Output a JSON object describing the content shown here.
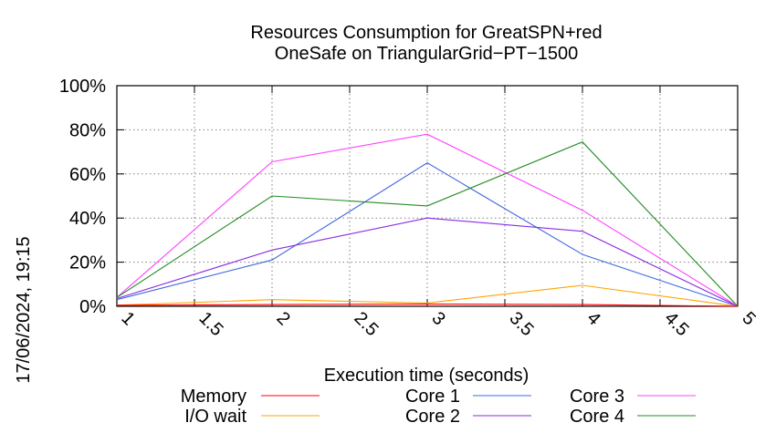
{
  "timestamp": "17/06/2024, 19:15",
  "chart_data": {
    "type": "line",
    "title": "Resources Consumption for GreatSPN+red",
    "subtitle": "OneSafe on TriangularGrid−PT−1500",
    "xlabel": "Execution time (seconds)",
    "ylabel": "",
    "xlim": [
      1,
      5
    ],
    "ylim": [
      0,
      100
    ],
    "x_ticks": [
      "1",
      "1.5",
      "2",
      "2.5",
      "3",
      "3.5",
      "4",
      "4.5",
      "5"
    ],
    "y_ticks": [
      "0%",
      "20%",
      "40%",
      "60%",
      "80%",
      "100%"
    ],
    "grid": true,
    "legend_position": "bottom",
    "x": [
      1,
      2,
      3,
      4,
      5
    ],
    "series": [
      {
        "name": "Memory",
        "color": "#ff0000",
        "values": [
          0.5,
          0.8,
          1.0,
          0.8,
          0
        ]
      },
      {
        "name": "I/O wait",
        "color": "#ffa500",
        "values": [
          0.5,
          3,
          1.5,
          9.5,
          0
        ]
      },
      {
        "name": "Core 1",
        "color": "#4169e1",
        "values": [
          3,
          21,
          65,
          23.5,
          0
        ]
      },
      {
        "name": "Core 2",
        "color": "#8a2be2",
        "values": [
          3.5,
          25.5,
          40,
          34,
          0
        ]
      },
      {
        "name": "Core 3",
        "color": "#ff40ff",
        "values": [
          4,
          65.5,
          78,
          43.5,
          0
        ]
      },
      {
        "name": "Core 4",
        "color": "#228b22",
        "values": [
          4,
          50,
          45.5,
          74.5,
          0
        ]
      }
    ]
  }
}
